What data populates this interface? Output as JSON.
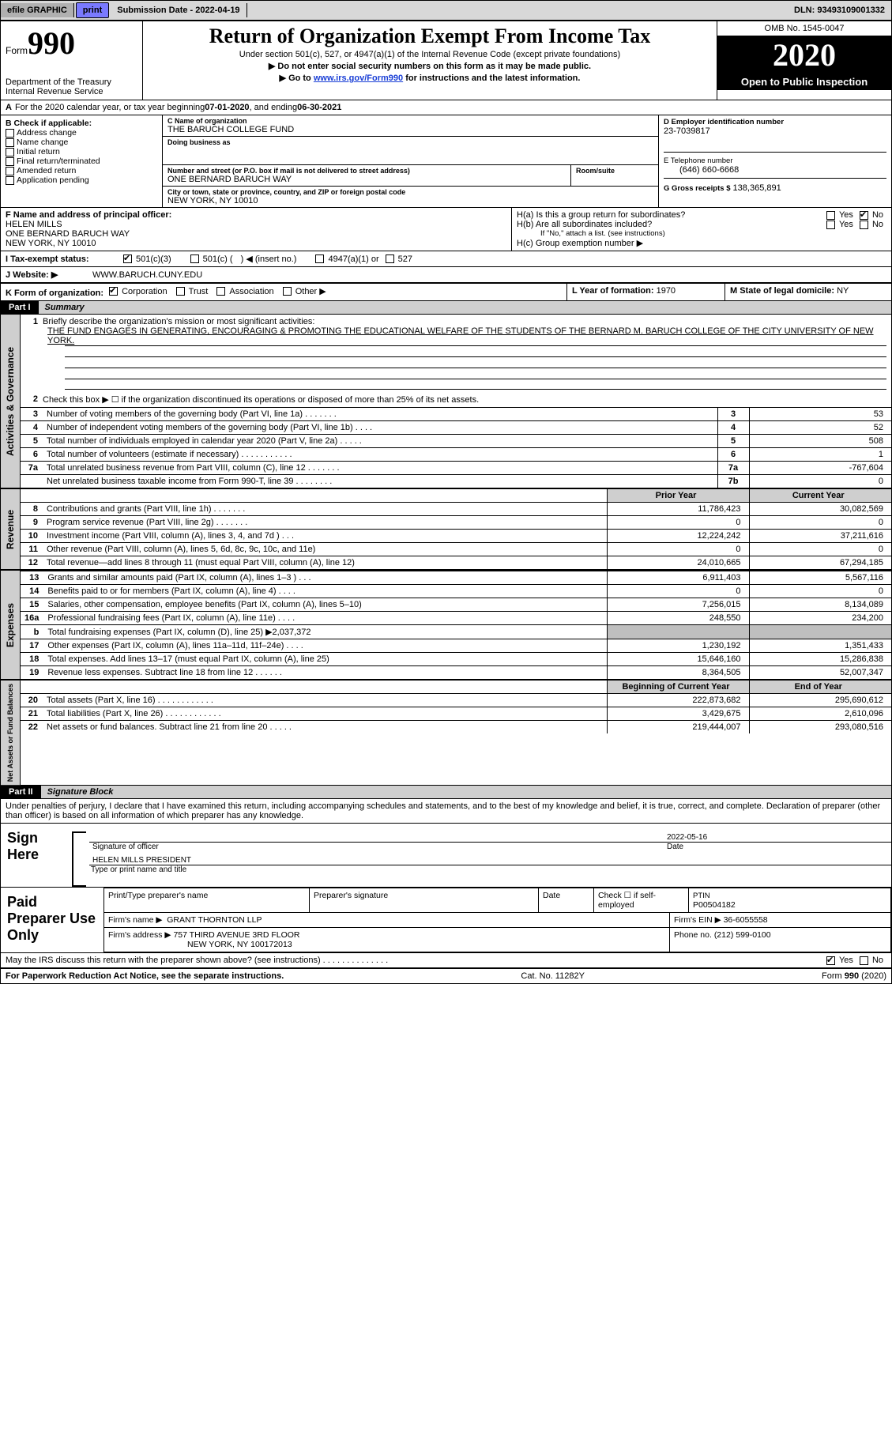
{
  "top": {
    "efile": "efile GRAPHIC",
    "print": "print",
    "submission_label": "Submission Date -",
    "submission_date": "2022-04-19",
    "dln_label": "DLN:",
    "dln": "93493109001332"
  },
  "header": {
    "form_word": "Form",
    "form_number": "990",
    "title": "Return of Organization Exempt From Income Tax",
    "subtitle1": "Under section 501(c), 527, or 4947(a)(1) of the Internal Revenue Code (except private foundations)",
    "subtitle2": "▶ Do not enter social security numbers on this form as it may be made public.",
    "subtitle3_pre": "▶ Go to ",
    "subtitle3_link": "www.irs.gov/Form990",
    "subtitle3_post": " for instructions and the latest information.",
    "omb": "OMB No. 1545-0047",
    "year": "2020",
    "open_pub": "Open to Public Inspection",
    "dept": "Department of the Treasury\nInternal Revenue Service"
  },
  "rowA": {
    "prefix": "A",
    "text_pre": "For the 2020 calendar year, or tax year beginning ",
    "begin": "07-01-2020",
    "mid": " , and ending ",
    "end": "06-30-2021"
  },
  "B": {
    "label": "B Check if applicable:",
    "addr_change": "Address change",
    "name_change": "Name change",
    "initial_return": "Initial return",
    "final_return": "Final return/terminated",
    "amended": "Amended return",
    "app_pending": "Application pending"
  },
  "C": {
    "c_lbl": "C Name of organization",
    "org_name": "THE BARUCH COLLEGE FUND",
    "dba_lbl": "Doing business as",
    "dba": "",
    "addr_lbl": "Number and street (or P.O. box if mail is not delivered to street address)",
    "addr": "ONE BERNARD BARUCH WAY",
    "room_lbl": "Room/suite",
    "room": "",
    "city_lbl": "City or town, state or province, country, and ZIP or foreign postal code",
    "city": "NEW YORK, NY  10010"
  },
  "D": {
    "label": "D Employer identification number",
    "val": "23-7039817"
  },
  "E": {
    "label": "E Telephone number",
    "val": "(646) 660-6668"
  },
  "G": {
    "label": "G Gross receipts $",
    "val": "138,365,891"
  },
  "F": {
    "label": "F Name and address of principal officer:",
    "name": "HELEN MILLS",
    "addr1": "ONE BERNARD BARUCH WAY",
    "addr2": "NEW YORK, NY  10010"
  },
  "H": {
    "a_label": "H(a)  Is this a group return for subordinates?",
    "a_yes": "Yes",
    "a_no": "No",
    "a_checked": "No",
    "b_label": "H(b)  Are all subordinates included?",
    "b_yes": "Yes",
    "b_no": "No",
    "b_note": "If \"No,\" attach a list. (see instructions)",
    "c_label": "H(c)  Group exemption number ▶"
  },
  "I": {
    "label": "I   Tax-exempt status:",
    "o1": "501(c)(3)",
    "o2_pre": "501(c) (",
    "o2_post": ") ◀ (insert no.)",
    "o3": "4947(a)(1) or",
    "o4": "527"
  },
  "J": {
    "label": "J   Website: ▶",
    "val": "WWW.BARUCH.CUNY.EDU"
  },
  "K": {
    "label": "K Form of organization:",
    "c1": "Corporation",
    "c2": "Trust",
    "c3": "Association",
    "c4": "Other ▶"
  },
  "L": {
    "label": "L Year of formation:",
    "val": "1970"
  },
  "M": {
    "label": "M State of legal domicile:",
    "val": "NY"
  },
  "part1": {
    "hdr": "Part I",
    "title": "Summary"
  },
  "summary": {
    "q1_pre": "Briefly describe the organization's mission or most significant activities:",
    "q1_text": "THE FUND ENGAGES IN GENERATING, ENCOURAGING & PROMOTING THE EDUCATIONAL WELFARE OF THE STUDENTS OF THE BERNARD M. BARUCH COLLEGE OF THE CITY UNIVERSITY OF NEW YORK.",
    "q2": "Check this box ▶ ☐  if the organization discontinued its operations or disposed of more than 25% of its net assets.",
    "side1": "Activities & Governance",
    "side2": "Revenue",
    "side3": "Expenses",
    "side4": "Net Assets or Fund Balances",
    "rows_top": [
      {
        "n": "3",
        "d": "Number of voting members of the governing body (Part VI, line 1a)   .    .    .    .    .    .    .",
        "box": "3",
        "v": "53"
      },
      {
        "n": "4",
        "d": "Number of independent voting members of the governing body (Part VI, line 1b)   .    .    .    .",
        "box": "4",
        "v": "52"
      },
      {
        "n": "5",
        "d": "Total number of individuals employed in calendar year 2020 (Part V, line 2a)   .    .    .    .    .",
        "box": "5",
        "v": "508"
      },
      {
        "n": "6",
        "d": "Total number of volunteers (estimate if necessary)   .    .    .    .    .    .    .    .    .    .    .",
        "box": "6",
        "v": "1"
      },
      {
        "n": "7a",
        "d": "Total unrelated business revenue from Part VIII, column (C), line 12   .    .    .    .    .    .    .",
        "box": "7a",
        "v": "-767,604"
      },
      {
        "n": "",
        "d": "Net unrelated business taxable income from Form 990-T, line 39   .    .    .    .    .    .    .    .",
        "box": "7b",
        "v": "0"
      }
    ],
    "col_prior": "Prior Year",
    "col_current": "Current Year",
    "rows_rev": [
      {
        "n": "8",
        "d": "Contributions and grants (Part VIII, line 1h)   .    .    .    .    .    .    .",
        "p": "11,786,423",
        "c": "30,082,569"
      },
      {
        "n": "9",
        "d": "Program service revenue (Part VIII, line 2g)   .    .    .    .    .    .    .",
        "p": "0",
        "c": "0"
      },
      {
        "n": "10",
        "d": "Investment income (Part VIII, column (A), lines 3, 4, and 7d )   .    .    .",
        "p": "12,224,242",
        "c": "37,211,616"
      },
      {
        "n": "11",
        "d": "Other revenue (Part VIII, column (A), lines 5, 6d, 8c, 9c, 10c, and 11e)",
        "p": "0",
        "c": "0"
      },
      {
        "n": "12",
        "d": "Total revenue—add lines 8 through 11 (must equal Part VIII, column (A), line 12)",
        "p": "24,010,665",
        "c": "67,294,185"
      }
    ],
    "rows_exp": [
      {
        "n": "13",
        "d": "Grants and similar amounts paid (Part IX, column (A), lines 1–3 )   .    .    .",
        "p": "6,911,403",
        "c": "5,567,116"
      },
      {
        "n": "14",
        "d": "Benefits paid to or for members (Part IX, column (A), line 4)   .    .    .    .",
        "p": "0",
        "c": "0"
      },
      {
        "n": "15",
        "d": "Salaries, other compensation, employee benefits (Part IX, column (A), lines 5–10)",
        "p": "7,256,015",
        "c": "8,134,089"
      },
      {
        "n": "16a",
        "d": "Professional fundraising fees (Part IX, column (A), line 11e)   .    .    .    .",
        "p": "248,550",
        "c": "234,200"
      },
      {
        "n": "b",
        "d": "Total fundraising expenses (Part IX, column (D), line 25) ▶2,037,372",
        "p": "",
        "c": "",
        "gray": true
      },
      {
        "n": "17",
        "d": "Other expenses (Part IX, column (A), lines 11a–11d, 11f–24e)   .    .    .    .",
        "p": "1,230,192",
        "c": "1,351,433"
      },
      {
        "n": "18",
        "d": "Total expenses. Add lines 13–17 (must equal Part IX, column (A), line 25)",
        "p": "15,646,160",
        "c": "15,286,838"
      },
      {
        "n": "19",
        "d": "Revenue less expenses. Subtract line 18 from line 12   .    .    .    .    .    .",
        "p": "8,364,505",
        "c": "52,007,347"
      }
    ],
    "col_begin": "Beginning of Current Year",
    "col_end": "End of Year",
    "rows_net": [
      {
        "n": "20",
        "d": "Total assets (Part X, line 16)   .    .    .    .    .    .    .    .    .    .    .    .",
        "p": "222,873,682",
        "c": "295,690,612"
      },
      {
        "n": "21",
        "d": "Total liabilities (Part X, line 26)   .    .    .    .    .    .    .    .    .    .    .    .",
        "p": "3,429,675",
        "c": "2,610,096"
      },
      {
        "n": "22",
        "d": "Net assets or fund balances. Subtract line 21 from line 20   .    .    .    .    .",
        "p": "219,444,007",
        "c": "293,080,516"
      }
    ]
  },
  "part2": {
    "hdr": "Part II",
    "title": "Signature Block",
    "decl": "Under penalties of perjury, I declare that I have examined this return, including accompanying schedules and statements, and to the best of my knowledge and belief, it is true, correct, and complete. Declaration of preparer (other than officer) is based on all information of which preparer has any knowledge."
  },
  "sign": {
    "label": "Sign Here",
    "sig_lbl": "Signature of officer",
    "date_lbl": "Date",
    "date_val": "2022-05-16",
    "name_title": "HELEN MILLS  PRESIDENT",
    "name_lbl": "Type or print name and title"
  },
  "preparer": {
    "label": "Paid Preparer Use Only",
    "c1": "Print/Type preparer's name",
    "c2": "Preparer's signature",
    "c3": "Date",
    "c4_pre": "Check ☐ if self-employed",
    "c5_lbl": "PTIN",
    "c5_val": "P00504182",
    "firm_lbl": "Firm's name   ▶",
    "firm_val": "GRANT THORNTON LLP",
    "ein_lbl": "Firm's EIN ▶",
    "ein_val": "36-6055558",
    "addr_lbl": "Firm's address ▶",
    "addr1": "757 THIRD AVENUE 3RD FLOOR",
    "addr2": "NEW YORK, NY  100172013",
    "phone_lbl": "Phone no.",
    "phone_val": "(212) 599-0100"
  },
  "discuss": {
    "text": "May the IRS discuss this return with the preparer shown above? (see instructions)   .    .    .    .    .    .    .    .    .    .    .    .    .    .",
    "yes": "Yes",
    "no": "No"
  },
  "footer": {
    "left": "For Paperwork Reduction Act Notice, see the separate instructions.",
    "mid": "Cat. No. 11282Y",
    "right": "Form 990 (2020)"
  },
  "colors": {
    "print_btn": "#7a7aff",
    "gray_bg": "#cfcfcf",
    "dark_gray": "#bfbfbf"
  }
}
